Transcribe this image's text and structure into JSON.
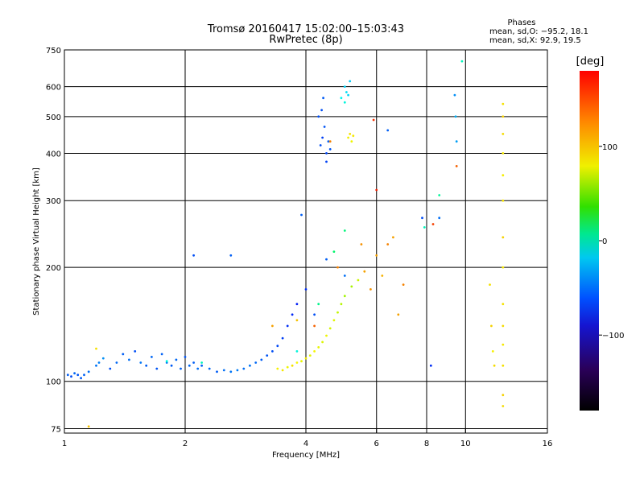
{
  "chart_data": {
    "type": "scatter",
    "title": "Tromsø 20160417 15:02:00–15:03:43",
    "subtitle": "RwPretec (8p)",
    "xlabel": "Frequency [MHz]",
    "ylabel": "Stationary phase Virtual Height [km]",
    "x_scale": "log",
    "y_scale": "log",
    "xlim": [
      1,
      16
    ],
    "ylim": [
      73,
      750
    ],
    "x_ticks": [
      1,
      2,
      4,
      6,
      8,
      10,
      16
    ],
    "x_tick_labels": [
      "1",
      "2",
      "4",
      "6",
      "8",
      "10",
      "16"
    ],
    "y_ticks": [
      75,
      100,
      200,
      300,
      400,
      500,
      600,
      750
    ],
    "y_tick_labels": [
      "75",
      "100",
      "200",
      "300",
      "400",
      "500",
      "600",
      "750"
    ],
    "grid": true,
    "stats_box": {
      "heading": "Phases",
      "line1": "mean, sd,O: −95.2, 18.1",
      "line2": "mean, sd,X:  92.9, 19.5"
    },
    "colorbar": {
      "label": "[deg]",
      "range": [
        -180,
        180
      ],
      "ticks": [
        100,
        0,
        -100
      ],
      "tick_labels": [
        "100",
        "0",
        "−100"
      ]
    },
    "series": [
      {
        "points": [
          [
            1.02,
            104,
            -95
          ],
          [
            1.04,
            103,
            -100
          ],
          [
            1.06,
            105,
            -92
          ],
          [
            1.08,
            104,
            -98
          ],
          [
            1.1,
            102,
            -96
          ],
          [
            1.12,
            104,
            -94
          ],
          [
            1.15,
            106,
            -90
          ],
          [
            1.2,
            110,
            -88
          ],
          [
            1.22,
            112,
            -85
          ],
          [
            1.25,
            115,
            -80
          ],
          [
            1.3,
            108,
            -100
          ],
          [
            1.35,
            112,
            -92
          ],
          [
            1.4,
            118,
            -95
          ],
          [
            1.45,
            114,
            -90
          ],
          [
            1.5,
            120,
            -100
          ],
          [
            1.55,
            112,
            -88
          ],
          [
            1.6,
            110,
            -95
          ],
          [
            1.65,
            116,
            -92
          ],
          [
            1.7,
            108,
            -98
          ],
          [
            1.75,
            118,
            -94
          ],
          [
            1.8,
            112,
            -90
          ],
          [
            1.85,
            110,
            -96
          ],
          [
            1.9,
            114,
            -92
          ],
          [
            1.95,
            108,
            -94
          ],
          [
            2.0,
            116,
            -98
          ],
          [
            2.05,
            110,
            -92
          ],
          [
            2.1,
            112,
            -95
          ],
          [
            2.15,
            108,
            -90
          ],
          [
            2.2,
            110,
            -94
          ],
          [
            2.3,
            108,
            -92
          ],
          [
            2.4,
            106,
            -96
          ],
          [
            2.5,
            107,
            -90
          ],
          [
            2.6,
            106,
            -88
          ],
          [
            2.7,
            107,
            -86
          ],
          [
            2.8,
            108,
            -90
          ],
          [
            2.9,
            110,
            -88
          ],
          [
            3.0,
            112,
            -92
          ],
          [
            3.1,
            114,
            -95
          ],
          [
            3.2,
            117,
            -98
          ],
          [
            3.3,
            120,
            -100
          ],
          [
            3.4,
            124,
            -102
          ],
          [
            3.5,
            130,
            -105
          ],
          [
            3.6,
            140,
            -110
          ],
          [
            3.7,
            150,
            -112
          ],
          [
            3.8,
            160,
            -115
          ],
          [
            4.0,
            175,
            -110
          ],
          [
            4.2,
            150,
            -100
          ],
          [
            4.5,
            210,
            -95
          ],
          [
            5.0,
            190,
            -90
          ],
          [
            4.35,
            420,
            -100
          ],
          [
            4.4,
            440,
            -105
          ],
          [
            4.45,
            470,
            -98
          ],
          [
            4.5,
            400,
            -102
          ],
          [
            4.55,
            430,
            -95
          ],
          [
            4.38,
            520,
            -100
          ],
          [
            4.42,
            560,
            -96
          ],
          [
            4.5,
            380,
            -104
          ],
          [
            4.6,
            410,
            -98
          ],
          [
            4.3,
            500,
            -100
          ],
          [
            5.0,
            600,
            -60
          ],
          [
            5.05,
            580,
            -55
          ],
          [
            5.1,
            570,
            -58
          ],
          [
            5.15,
            620,
            -62
          ],
          [
            8.2,
            110,
            -110
          ],
          [
            8.6,
            270,
            -90
          ],
          [
            9.4,
            570,
            -80
          ],
          [
            9.45,
            500,
            -70
          ],
          [
            9.5,
            430,
            -75
          ],
          [
            6.4,
            460,
            -95
          ],
          [
            7.8,
            270,
            -100
          ],
          [
            2.1,
            215,
            -100
          ],
          [
            2.6,
            215,
            -95
          ],
          [
            3.9,
            275,
            -95
          ]
        ]
      },
      {
        "points": [
          [
            3.4,
            108,
            105
          ],
          [
            3.5,
            107,
            108
          ],
          [
            3.6,
            109,
            102
          ],
          [
            3.7,
            110,
            110
          ],
          [
            3.8,
            112,
            104
          ],
          [
            3.9,
            113,
            100
          ],
          [
            4.0,
            115,
            106
          ],
          [
            4.1,
            117,
            98
          ],
          [
            4.2,
            120,
            104
          ],
          [
            4.3,
            123,
            100
          ],
          [
            4.4,
            127,
            96
          ],
          [
            4.5,
            132,
            102
          ],
          [
            4.6,
            138,
            94
          ],
          [
            4.7,
            145,
            98
          ],
          [
            4.8,
            152,
            88
          ],
          [
            4.9,
            160,
            84
          ],
          [
            5.0,
            168,
            78
          ],
          [
            5.2,
            178,
            80
          ],
          [
            5.4,
            185,
            90
          ],
          [
            5.6,
            195,
            130
          ],
          [
            5.8,
            175,
            135
          ],
          [
            6.0,
            215,
            130
          ],
          [
            6.2,
            190,
            125
          ],
          [
            6.4,
            230,
            140
          ],
          [
            6.6,
            240,
            130
          ],
          [
            5.1,
            440,
            105
          ],
          [
            5.15,
            450,
            110
          ],
          [
            5.2,
            430,
            102
          ],
          [
            5.25,
            445,
            108
          ],
          [
            1.15,
            76,
            120
          ],
          [
            1.2,
            122,
            110
          ],
          [
            4.8,
            200,
            140
          ],
          [
            5.5,
            230,
            135
          ],
          [
            11.5,
            180,
            110
          ],
          [
            11.6,
            140,
            115
          ],
          [
            11.7,
            120,
            105
          ],
          [
            11.8,
            110,
            112
          ],
          [
            12.4,
            540,
            110
          ],
          [
            12.4,
            500,
            115
          ],
          [
            12.4,
            450,
            112
          ],
          [
            12.4,
            400,
            108
          ],
          [
            12.4,
            350,
            106
          ],
          [
            12.4,
            300,
            110
          ],
          [
            12.4,
            240,
            115
          ],
          [
            12.4,
            200,
            108
          ],
          [
            12.4,
            160,
            110
          ],
          [
            12.4,
            140,
            112
          ],
          [
            12.4,
            125,
            108
          ],
          [
            12.4,
            110,
            110
          ],
          [
            12.4,
            92,
            115
          ],
          [
            12.4,
            86,
            112
          ],
          [
            9.5,
            370,
            150
          ],
          [
            8.3,
            260,
            160
          ],
          [
            7.0,
            180,
            140
          ],
          [
            6.8,
            150,
            130
          ],
          [
            6.0,
            320,
            170
          ],
          [
            5.9,
            490,
            165
          ],
          [
            4.6,
            430,
            140
          ],
          [
            4.2,
            140,
            150
          ],
          [
            3.8,
            145,
            120
          ],
          [
            3.3,
            140,
            130
          ],
          [
            8.6,
            310,
            -20
          ],
          [
            7.9,
            255,
            -30
          ],
          [
            5.0,
            250,
            -10
          ],
          [
            4.7,
            220,
            -5
          ],
          [
            4.3,
            160,
            -15
          ],
          [
            4.9,
            560,
            -45
          ],
          [
            5.0,
            545,
            -40
          ],
          [
            3.8,
            120,
            -40
          ],
          [
            2.2,
            112,
            -30
          ],
          [
            1.8,
            113,
            -40
          ],
          [
            9.8,
            700,
            -30
          ]
        ]
      }
    ]
  }
}
